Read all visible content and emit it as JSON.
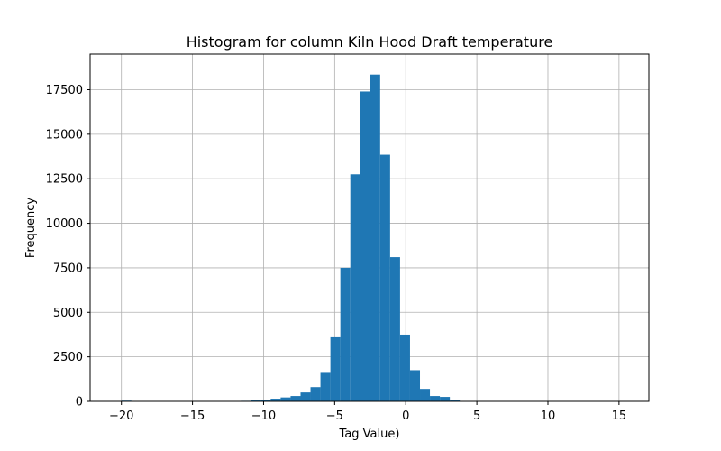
{
  "chart_data": {
    "type": "bar",
    "title": "Histogram for column Kiln Hood Draft temperature",
    "xlabel": "Tag Value)",
    "ylabel": "Frequency",
    "xlim": [
      -22.2,
      17.1
    ],
    "ylim": [
      0,
      19500
    ],
    "grid": true,
    "bar_color": "#1f77b4",
    "bin_width": 0.7,
    "bins": [
      {
        "x0": -20.0,
        "value": 40
      },
      {
        "x0": -19.3,
        "value": 10
      },
      {
        "x0": -18.6,
        "value": 0
      },
      {
        "x0": -17.9,
        "value": 0
      },
      {
        "x0": -17.2,
        "value": 0
      },
      {
        "x0": -16.5,
        "value": 0
      },
      {
        "x0": -15.8,
        "value": 0
      },
      {
        "x0": -15.1,
        "value": 0
      },
      {
        "x0": -14.4,
        "value": 0
      },
      {
        "x0": -13.7,
        "value": 0
      },
      {
        "x0": -13.0,
        "value": 10
      },
      {
        "x0": -12.3,
        "value": 20
      },
      {
        "x0": -11.6,
        "value": 30
      },
      {
        "x0": -10.9,
        "value": 50
      },
      {
        "x0": -10.2,
        "value": 90
      },
      {
        "x0": -9.5,
        "value": 150
      },
      {
        "x0": -8.8,
        "value": 220
      },
      {
        "x0": -8.1,
        "value": 300
      },
      {
        "x0": -7.4,
        "value": 500
      },
      {
        "x0": -6.7,
        "value": 800
      },
      {
        "x0": -6.0,
        "value": 1650
      },
      {
        "x0": -5.3,
        "value": 3600
      },
      {
        "x0": -4.6,
        "value": 7500
      },
      {
        "x0": -3.9,
        "value": 12750
      },
      {
        "x0": -3.2,
        "value": 17400
      },
      {
        "x0": -2.5,
        "value": 18350
      },
      {
        "x0": -1.8,
        "value": 13850
      },
      {
        "x0": -1.1,
        "value": 8100
      },
      {
        "x0": -0.4,
        "value": 3750
      },
      {
        "x0": 0.3,
        "value": 1750
      },
      {
        "x0": 1.0,
        "value": 700
      },
      {
        "x0": 1.7,
        "value": 300
      },
      {
        "x0": 2.4,
        "value": 250
      },
      {
        "x0": 3.1,
        "value": 50
      },
      {
        "x0": 3.8,
        "value": 10
      },
      {
        "x0": 4.5,
        "value": 0
      },
      {
        "x0": 5.2,
        "value": 0
      },
      {
        "x0": 5.9,
        "value": 0
      },
      {
        "x0": 6.6,
        "value": 0
      },
      {
        "x0": 7.3,
        "value": 0
      },
      {
        "x0": 8.0,
        "value": 0
      },
      {
        "x0": 8.7,
        "value": 0
      },
      {
        "x0": 9.4,
        "value": 0
      },
      {
        "x0": 10.1,
        "value": 0
      },
      {
        "x0": 10.8,
        "value": 0
      },
      {
        "x0": 11.5,
        "value": 0
      },
      {
        "x0": 12.2,
        "value": 0
      },
      {
        "x0": 12.9,
        "value": 0
      },
      {
        "x0": 13.6,
        "value": 0
      },
      {
        "x0": 14.3,
        "value": 0
      },
      {
        "x0": 15.0,
        "value": 5
      }
    ],
    "x_ticks": [
      {
        "value": -20,
        "label": "−20"
      },
      {
        "value": -15,
        "label": "−15"
      },
      {
        "value": -10,
        "label": "−10"
      },
      {
        "value": -5,
        "label": "−5"
      },
      {
        "value": 0,
        "label": "0"
      },
      {
        "value": 5,
        "label": "5"
      },
      {
        "value": 10,
        "label": "10"
      },
      {
        "value": 15,
        "label": "15"
      }
    ],
    "y_ticks": [
      {
        "value": 0,
        "label": "0"
      },
      {
        "value": 2500,
        "label": "2500"
      },
      {
        "value": 5000,
        "label": "5000"
      },
      {
        "value": 7500,
        "label": "7500"
      },
      {
        "value": 10000,
        "label": "10000"
      },
      {
        "value": 12500,
        "label": "12500"
      },
      {
        "value": 15000,
        "label": "15000"
      },
      {
        "value": 17500,
        "label": "17500"
      }
    ]
  }
}
